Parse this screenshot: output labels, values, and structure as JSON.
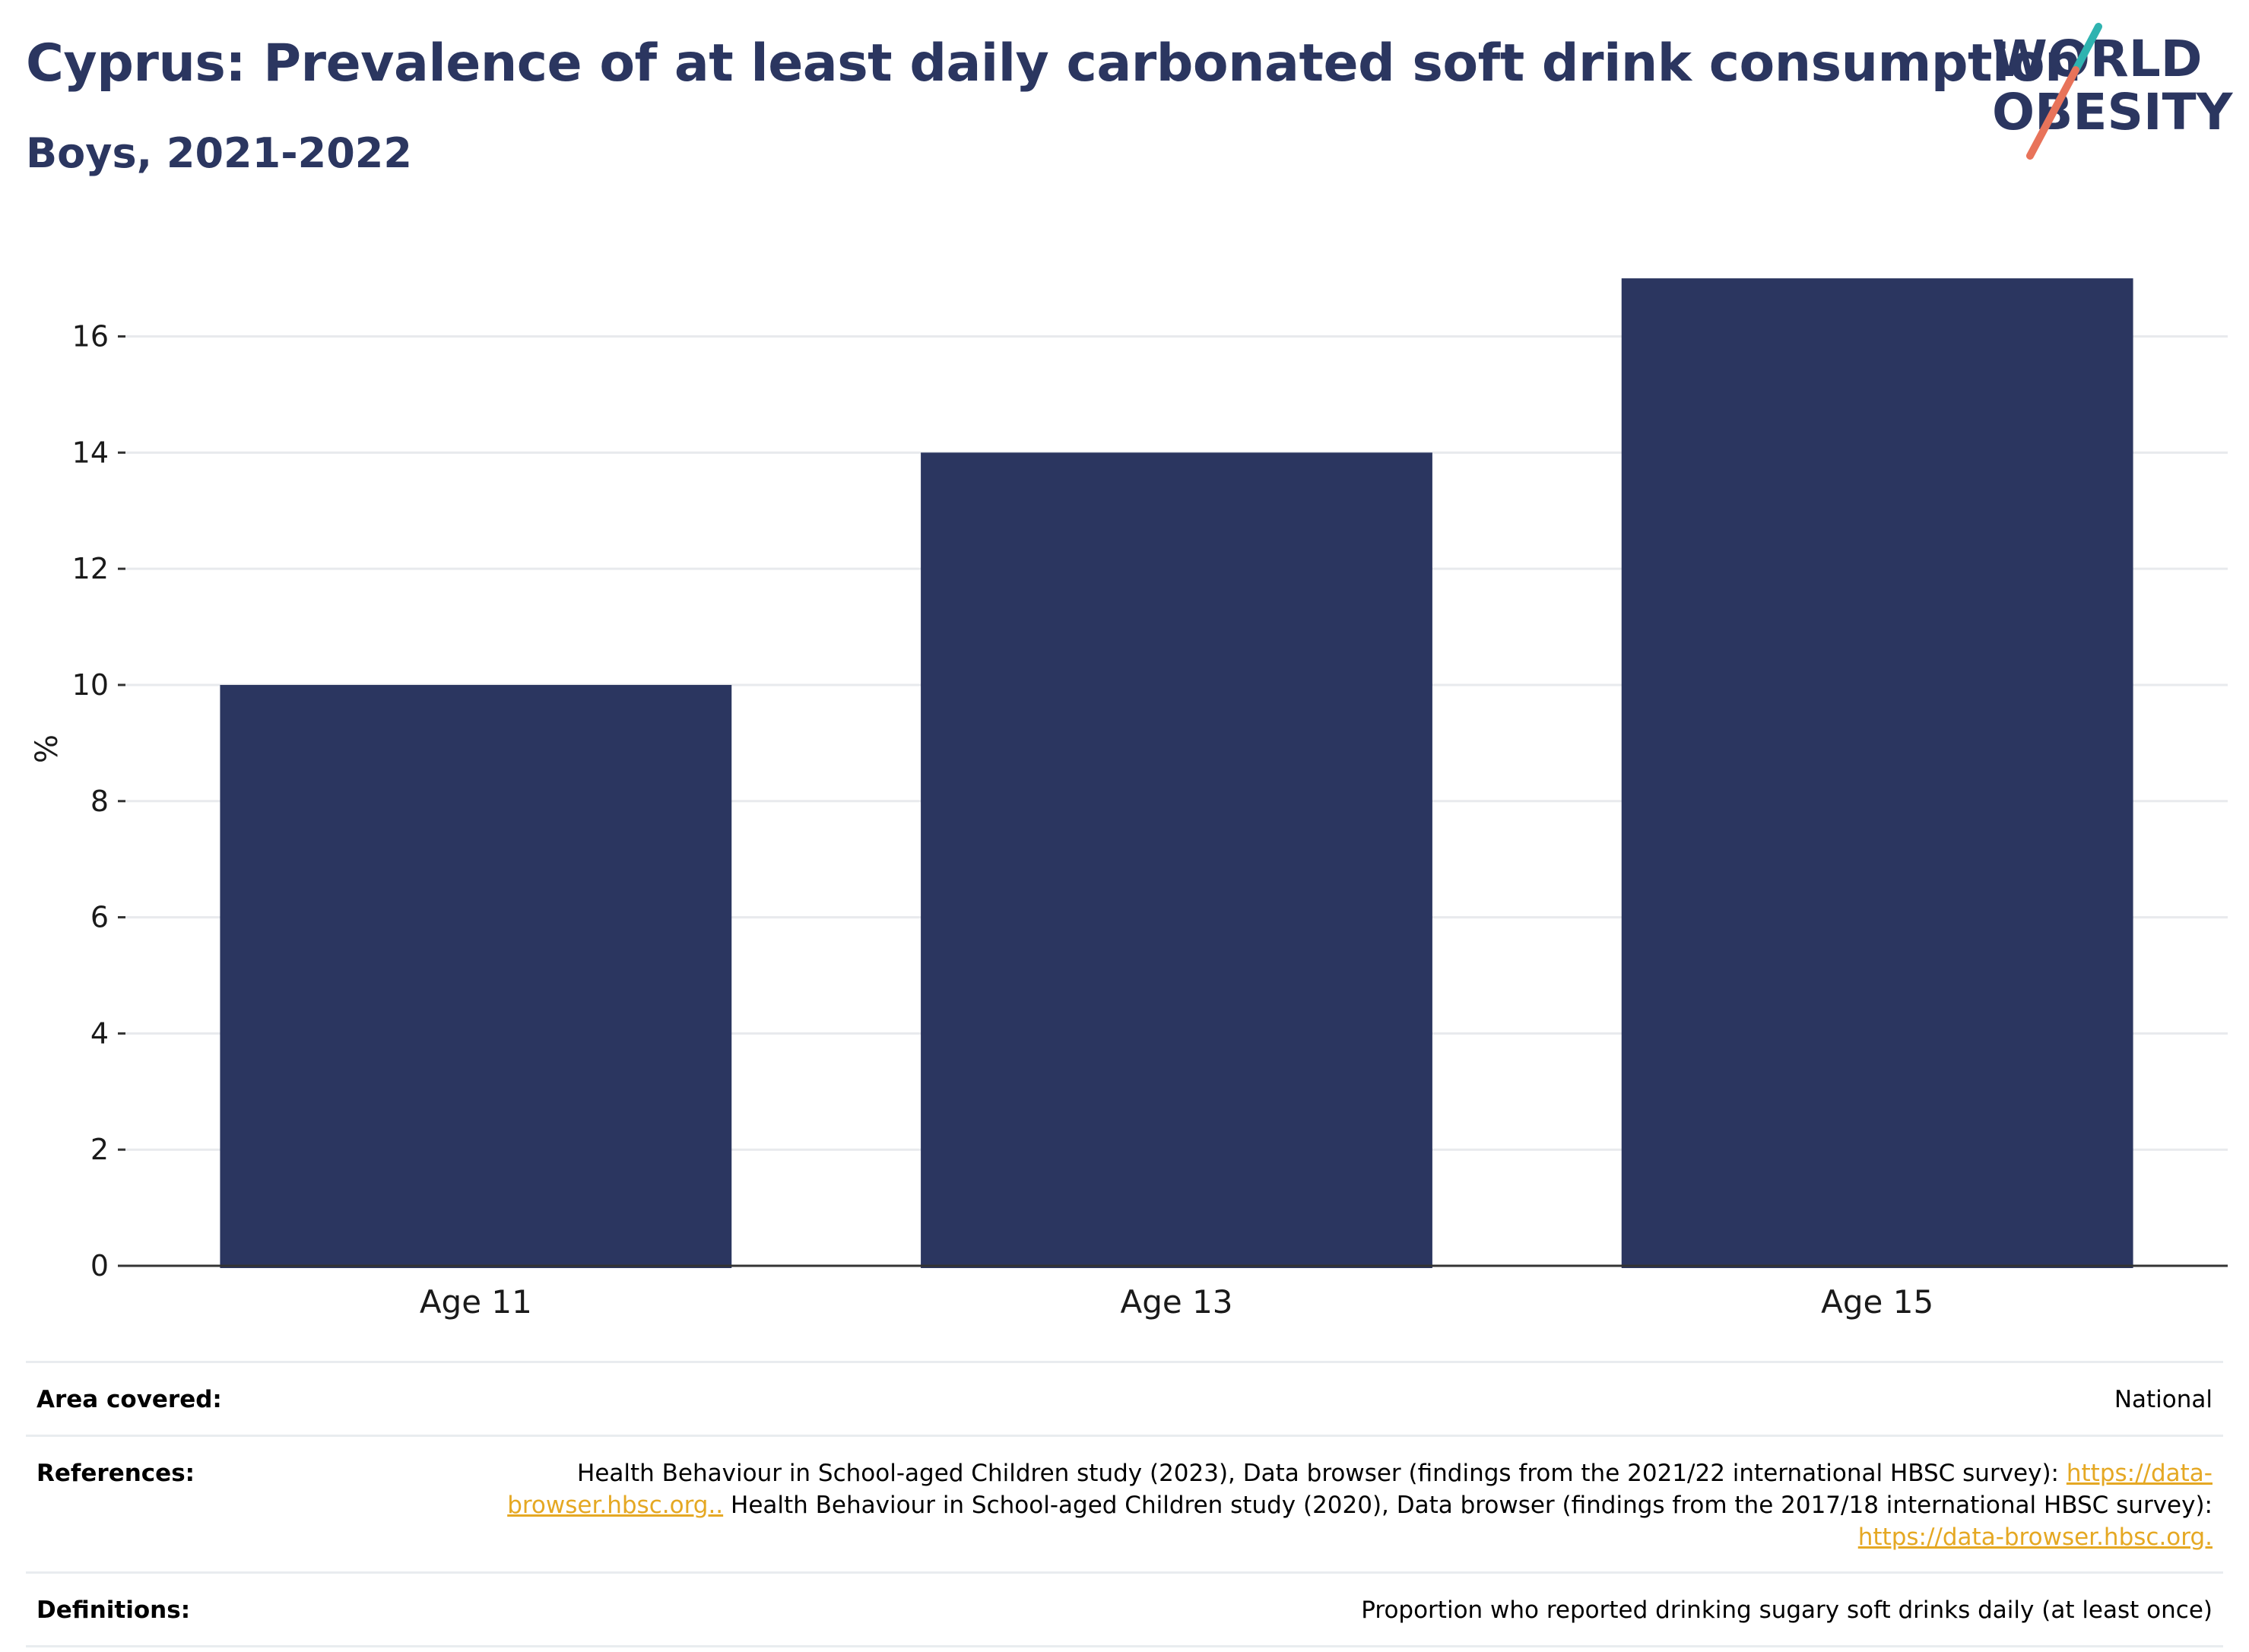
{
  "header": {
    "title": "Cyprus: Prevalence of at least daily carbonated soft drink consumption",
    "subtitle": "Boys, 2021-2022"
  },
  "logo": {
    "line1": "WORLD",
    "line2": "OBESITY",
    "text_color": "#2b3660",
    "slash_teal": "#2fb3b0",
    "slash_coral": "#e8735a"
  },
  "chart_data": {
    "type": "bar",
    "categories": [
      "Age 11",
      "Age 13",
      "Age 15"
    ],
    "values": [
      10.0,
      14.0,
      17.0
    ],
    "xlabel": "",
    "ylabel": "%",
    "ylim": [
      0,
      17.8
    ],
    "yticks": [
      0,
      2,
      4,
      6,
      8,
      10,
      12,
      14,
      16
    ],
    "grid": true,
    "bar_color": "#2b3660"
  },
  "info": {
    "area": {
      "label": "Area covered:",
      "value": "National"
    },
    "references": {
      "label": "References:",
      "text1": "Health Behaviour in School-aged Children study (2023), Data browser (findings from the 2021/22 international HBSC survey): ",
      "link1": "https://data-browser.hbsc.org..",
      "text2": " Health Behaviour in School-aged Children study (2020), Data browser (findings from the 2017/18 international HBSC survey): ",
      "link2": "https://data-browser.hbsc.org."
    },
    "definitions": {
      "label": "Definitions:",
      "value": "Proportion who reported drinking sugary soft drinks daily (at least once)"
    }
  }
}
